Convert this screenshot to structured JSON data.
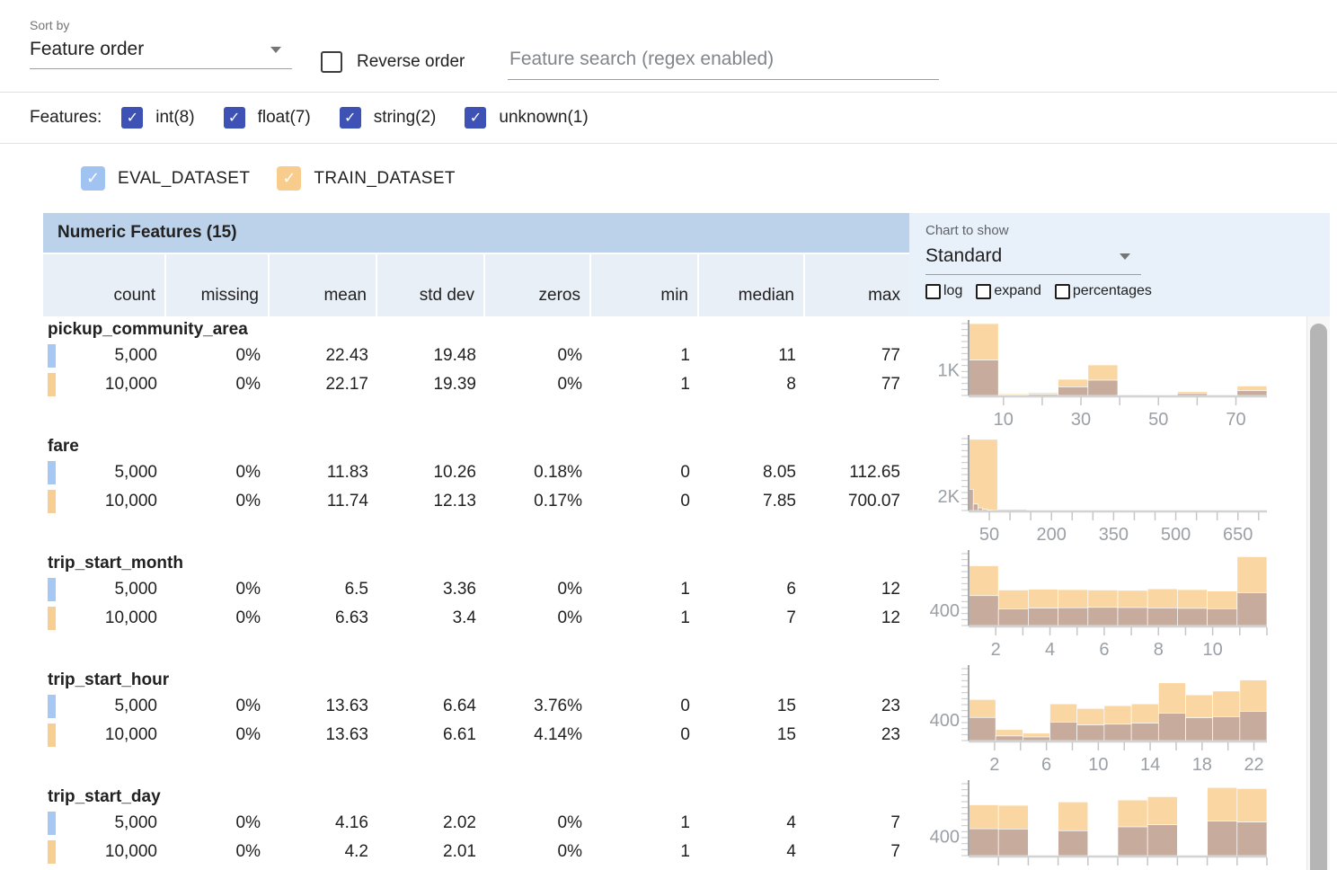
{
  "toolbar": {
    "sort_by_label": "Sort by",
    "sort_value": "Feature order",
    "reverse_label": "Reverse order",
    "search_placeholder": "Feature search (regex enabled)"
  },
  "features_bar": {
    "label": "Features:",
    "filters": [
      {
        "label": "int(8)",
        "checked": true
      },
      {
        "label": "float(7)",
        "checked": true
      },
      {
        "label": "string(2)",
        "checked": true
      },
      {
        "label": "unknown(1)",
        "checked": true
      }
    ]
  },
  "datasets": [
    {
      "name": "EVAL_DATASET",
      "checked": true,
      "checkbox_color": "#a0c3f2",
      "swatch_color": "#a8c8f4"
    },
    {
      "name": "TRAIN_DATASET",
      "checked": true,
      "checkbox_color": "#f8cc8c",
      "swatch_color": "#f8cf92"
    }
  ],
  "table": {
    "title": "Numeric Features (15)",
    "columns": [
      "count",
      "missing",
      "mean",
      "std dev",
      "zeros",
      "min",
      "median",
      "max"
    ],
    "features": [
      {
        "name": "pickup_community_area",
        "rows": [
          [
            "5,000",
            "0%",
            "22.43",
            "19.48",
            "0%",
            "1",
            "11",
            "77"
          ],
          [
            "10,000",
            "0%",
            "22.17",
            "19.39",
            "0%",
            "1",
            "8",
            "77"
          ]
        ]
      },
      {
        "name": "fare",
        "rows": [
          [
            "5,000",
            "0%",
            "11.83",
            "10.26",
            "0.18%",
            "0",
            "8.05",
            "112.65"
          ],
          [
            "10,000",
            "0%",
            "11.74",
            "12.13",
            "0.17%",
            "0",
            "7.85",
            "700.07"
          ]
        ]
      },
      {
        "name": "trip_start_month",
        "rows": [
          [
            "5,000",
            "0%",
            "6.5",
            "3.36",
            "0%",
            "1",
            "6",
            "12"
          ],
          [
            "10,000",
            "0%",
            "6.63",
            "3.4",
            "0%",
            "1",
            "7",
            "12"
          ]
        ]
      },
      {
        "name": "trip_start_hour",
        "rows": [
          [
            "5,000",
            "0%",
            "13.63",
            "6.64",
            "3.76%",
            "0",
            "15",
            "23"
          ],
          [
            "10,000",
            "0%",
            "13.63",
            "6.61",
            "4.14%",
            "0",
            "15",
            "23"
          ]
        ]
      },
      {
        "name": "trip_start_day",
        "rows": [
          [
            "5,000",
            "0%",
            "4.16",
            "2.02",
            "0%",
            "1",
            "4",
            "7"
          ],
          [
            "10,000",
            "0%",
            "4.2",
            "2.01",
            "0%",
            "1",
            "4",
            "7"
          ]
        ]
      }
    ]
  },
  "chart_panel": {
    "label": "Chart to show",
    "value": "Standard",
    "options": [
      {
        "label": "log",
        "checked": false
      },
      {
        "label": "expand",
        "checked": false
      },
      {
        "label": "percentages",
        "checked": false
      }
    ]
  },
  "colors": {
    "accent_indigo": "#3e51b5",
    "train_bar": "#fad7a2",
    "overlap_bar": "#c7ac9e",
    "table_title_bg": "#bcd2ea",
    "table_header_bg": "#e9eff7",
    "panel_bg": "#e8f0fa"
  },
  "chart_data": [
    {
      "feature": "pickup_community_area",
      "type": "histogram",
      "ylabel": "1K",
      "ylabel_value": 1000,
      "ymax": 2800,
      "xmin": 1,
      "xmax": 78,
      "xticks": [
        10,
        20,
        30,
        40,
        50,
        60,
        70
      ],
      "xtick_labels": [
        "10",
        "30",
        "50",
        "70"
      ],
      "series": [
        {
          "name": "TRAIN_DATASET",
          "color": "#fad7a2",
          "bins": [
            [
              1,
              8.7,
              2800
            ],
            [
              8.7,
              16.4,
              70
            ],
            [
              16.4,
              24.1,
              110
            ],
            [
              24.1,
              31.8,
              630
            ],
            [
              31.8,
              39.5,
              1190
            ],
            [
              39.5,
              47.2,
              40
            ],
            [
              47.2,
              54.9,
              35
            ],
            [
              54.9,
              62.6,
              150
            ],
            [
              62.6,
              70.3,
              40
            ],
            [
              70.3,
              78,
              370
            ]
          ]
        },
        {
          "name": "EVAL_DATASET",
          "color": "#c7ac9e",
          "bins": [
            [
              1,
              8.7,
              1380
            ],
            [
              8.7,
              16.4,
              30
            ],
            [
              16.4,
              24.1,
              50
            ],
            [
              24.1,
              31.8,
              335
            ],
            [
              31.8,
              39.5,
              595
            ],
            [
              39.5,
              47.2,
              20
            ],
            [
              47.2,
              54.9,
              15
            ],
            [
              54.9,
              62.6,
              75
            ],
            [
              62.6,
              70.3,
              20
            ],
            [
              70.3,
              78,
              185
            ]
          ]
        }
      ]
    },
    {
      "feature": "fare",
      "type": "histogram",
      "ylabel": "2K",
      "ylabel_value": 2000,
      "ymax": 10000,
      "xmin": 0,
      "xmax": 720,
      "xticks": [
        50,
        100,
        150,
        200,
        250,
        300,
        350,
        400,
        450,
        500,
        550,
        600,
        650,
        700
      ],
      "xtick_labels": [
        "50",
        "200",
        "350",
        "500",
        "650"
      ],
      "series": [
        {
          "name": "TRAIN_DATASET",
          "color": "#fad7a2",
          "bins": [
            [
              0,
              70,
              9900
            ],
            [
              70,
              140,
              180
            ],
            [
              140,
              210,
              60
            ],
            [
              210,
              280,
              25
            ],
            [
              280,
              350,
              12
            ],
            [
              350,
              420,
              8
            ],
            [
              420,
              490,
              5
            ],
            [
              490,
              560,
              4
            ],
            [
              560,
              630,
              3
            ],
            [
              630,
              700,
              3
            ]
          ]
        },
        {
          "name": "EVAL_DATASET",
          "color": "#c7ac9e",
          "bins": [
            [
              0,
              11.3,
              2950
            ],
            [
              11.3,
              22.6,
              900
            ],
            [
              22.6,
              33.9,
              350
            ],
            [
              33.9,
              45.2,
              160
            ],
            [
              45.2,
              56.5,
              80
            ],
            [
              56.5,
              67.8,
              40
            ],
            [
              67.8,
              79.1,
              20
            ],
            [
              79.1,
              90.4,
              10
            ],
            [
              90.4,
              101.7,
              6
            ],
            [
              101.7,
              113,
              4
            ]
          ]
        }
      ]
    },
    {
      "feature": "trip_start_month",
      "type": "histogram",
      "ylabel": "400",
      "ylabel_value": 400,
      "ymax": 1900,
      "xmin": 1,
      "xmax": 12,
      "xticks": [
        2,
        3,
        4,
        5,
        6,
        7,
        8,
        9,
        10,
        11,
        12
      ],
      "xtick_labels": [
        "2",
        "4",
        "6",
        "8",
        "10"
      ],
      "series": [
        {
          "name": "TRAIN_DATASET",
          "color": "#fad7a2",
          "bins": [
            [
              1,
              2.1,
              1580
            ],
            [
              2.1,
              3.2,
              940
            ],
            [
              3.2,
              4.3,
              960
            ],
            [
              4.3,
              5.4,
              950
            ],
            [
              5.4,
              6.5,
              940
            ],
            [
              6.5,
              7.6,
              930
            ],
            [
              7.6,
              8.7,
              970
            ],
            [
              8.7,
              9.8,
              950
            ],
            [
              9.8,
              10.9,
              910
            ],
            [
              10.9,
              12,
              1820
            ]
          ]
        },
        {
          "name": "EVAL_DATASET",
          "color": "#c7ac9e",
          "bins": [
            [
              1,
              2.1,
              790
            ],
            [
              2.1,
              3.2,
              440
            ],
            [
              3.2,
              4.3,
              460
            ],
            [
              4.3,
              5.4,
              470
            ],
            [
              5.4,
              6.5,
              480
            ],
            [
              6.5,
              7.6,
              475
            ],
            [
              7.6,
              8.7,
              465
            ],
            [
              8.7,
              9.8,
              455
            ],
            [
              9.8,
              10.9,
              445
            ],
            [
              10.9,
              12,
              870
            ]
          ]
        }
      ]
    },
    {
      "feature": "trip_start_hour",
      "type": "histogram",
      "ylabel": "400",
      "ylabel_value": 400,
      "ymax": 1400,
      "xmin": 0,
      "xmax": 23,
      "xticks": [
        2,
        4,
        6,
        8,
        10,
        12,
        14,
        16,
        18,
        20,
        22
      ],
      "xtick_labels": [
        "2",
        "6",
        "10",
        "14",
        "18",
        "22"
      ],
      "series": [
        {
          "name": "TRAIN_DATASET",
          "color": "#fad7a2",
          "bins": [
            [
              0,
              2.09,
              800
            ],
            [
              2.09,
              4.18,
              215
            ],
            [
              4.18,
              6.27,
              145
            ],
            [
              6.27,
              8.36,
              715
            ],
            [
              8.36,
              10.45,
              625
            ],
            [
              10.45,
              12.55,
              680
            ],
            [
              12.55,
              14.64,
              715
            ],
            [
              14.64,
              16.73,
              1125
            ],
            [
              16.73,
              18.82,
              890
            ],
            [
              18.82,
              20.91,
              965
            ],
            [
              20.91,
              23,
              1180
            ]
          ]
        },
        {
          "name": "EVAL_DATASET",
          "color": "#c7ac9e",
          "bins": [
            [
              0,
              2.09,
              450
            ],
            [
              2.09,
              4.18,
              90
            ],
            [
              4.18,
              6.27,
              70
            ],
            [
              6.27,
              8.36,
              360
            ],
            [
              8.36,
              10.45,
              305
            ],
            [
              10.45,
              12.55,
              320
            ],
            [
              12.55,
              14.64,
              340
            ],
            [
              14.64,
              16.73,
              535
            ],
            [
              16.73,
              18.82,
              445
            ],
            [
              18.82,
              20.91,
              465
            ],
            [
              20.91,
              23,
              570
            ]
          ]
        }
      ]
    },
    {
      "feature": "trip_start_day",
      "type": "histogram",
      "ylabel": "400",
      "ylabel_value": 400,
      "ymax": 1500,
      "xmin": 1,
      "xmax": 7,
      "xticks": [
        1.6,
        2.2,
        2.8,
        3.4,
        4.0,
        4.6,
        5.2,
        5.8,
        6.4,
        7.0
      ],
      "xtick_labels": [],
      "series": [
        {
          "name": "TRAIN_DATASET",
          "color": "#fad7a2",
          "bins": [
            [
              1,
              1.6,
              1060
            ],
            [
              1.6,
              2.2,
              1050
            ],
            [
              2.8,
              3.4,
              1120
            ],
            [
              4.0,
              4.6,
              1160
            ],
            [
              4.6,
              5.2,
              1230
            ],
            [
              5.8,
              6.4,
              1420
            ],
            [
              6.4,
              7.0,
              1400
            ]
          ]
        },
        {
          "name": "EVAL_DATASET",
          "color": "#c7ac9e",
          "bins": [
            [
              1,
              1.6,
              560
            ],
            [
              1.6,
              2.2,
              555
            ],
            [
              2.8,
              3.4,
              520
            ],
            [
              4.0,
              4.6,
              600
            ],
            [
              4.6,
              5.2,
              645
            ],
            [
              5.8,
              6.4,
              720
            ],
            [
              6.4,
              7.0,
              700
            ]
          ]
        }
      ]
    }
  ]
}
